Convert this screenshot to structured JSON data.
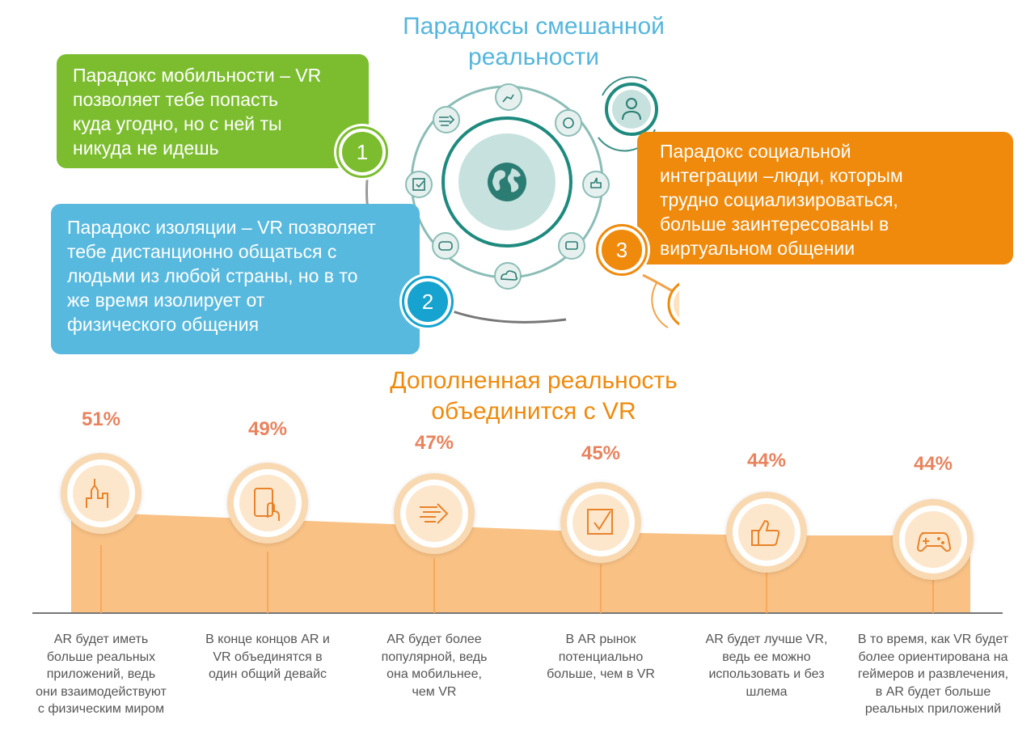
{
  "top_section": {
    "title_line1": "Парадоксы смешанной",
    "title_line2": "реальности",
    "paradoxes": [
      {
        "number": "1",
        "lines": [
          "Парадокс мобильности – VR",
          "позволяет тебе попасть",
          "куда угодно, но с ней ты",
          "никуда не идешь"
        ],
        "color": "#7cbd2f"
      },
      {
        "number": "2",
        "lines": [
          "Парадокс изоляции – VR позволяет",
          "тебе дистанционно общаться с",
          "людьми из любой страны, но в то",
          "же время изолирует от",
          "физического общения"
        ],
        "color": "#58b9de"
      },
      {
        "number": "3",
        "lines": [
          "Парадокс социальной",
          "интеграции –люди, которым",
          "трудно социализироваться,",
          "больше заинтересованы в",
          "виртуальном общении"
        ],
        "color": "#ef8a0c"
      }
    ],
    "hub_icons": [
      "globe-icon",
      "robot-arm-icon",
      "globe-small-icon",
      "thumbs-up-icon",
      "vr-headset-icon",
      "cloud-icon",
      "gamepad-icon",
      "checkbox-icon",
      "speed-arrow-icon",
      "person-icon",
      "eye-icon"
    ]
  },
  "bottom_section": {
    "title_line1": "Дополненная реальность",
    "title_line2": "объединится с VR",
    "accent_color": "#ef8a0c",
    "area_color": "#f9c184",
    "percent_color": "#e8835e",
    "items": [
      {
        "percent": "51%",
        "icon": "city-icon",
        "caption_lines": [
          "AR будет иметь",
          "больше реальных",
          "приложений, ведь",
          "они взаимодействуют",
          "с физическим миром"
        ]
      },
      {
        "percent": "49%",
        "icon": "tablet-touch-icon",
        "caption_lines": [
          "В конце концов AR и",
          "VR объединятся в",
          "один общий девайс"
        ]
      },
      {
        "percent": "47%",
        "icon": "speed-arrow-icon",
        "caption_lines": [
          "AR будет более",
          "популярной, ведь",
          "она мобильнее,",
          "чем VR"
        ]
      },
      {
        "percent": "45%",
        "icon": "checkbox-icon",
        "caption_lines": [
          "В AR рынок",
          "потенциально",
          "больше, чем в VR"
        ]
      },
      {
        "percent": "44%",
        "icon": "thumbs-up-icon",
        "caption_lines": [
          "AR будет лучше VR,",
          "ведь ее можно",
          "использовать и без",
          "шлема"
        ]
      },
      {
        "percent": "44%",
        "icon": "gamepad-icon",
        "caption_lines": [
          "В то время, как VR будет",
          "более ориентирована на",
          "геймеров и развлечения,",
          "в AR будет больше",
          "реальных приложений"
        ]
      }
    ]
  },
  "chart_data": {
    "type": "area",
    "categories": [
      "AR будет иметь больше реальных приложений, ведь они взаимодействуют с физическим миром",
      "В конце концов AR и VR объединятся в один общий девайс",
      "AR будет более популярной, ведь она мобильнее, чем VR",
      "В AR рынок потенциально больше, чем в VR",
      "AR будет лучше VR, ведь ее можно использовать и без шлема",
      "В то время, как VR будет более ориентирована на геймеров и развлечения, в AR будет больше реальных приложений"
    ],
    "values": [
      51,
      49,
      47,
      45,
      44,
      44
    ],
    "unit": "%",
    "title": "Дополненная реальность объединится с VR"
  }
}
